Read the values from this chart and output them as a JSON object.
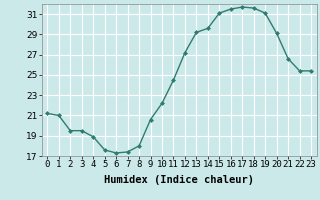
{
  "x": [
    0,
    1,
    2,
    3,
    4,
    5,
    6,
    7,
    8,
    9,
    10,
    11,
    12,
    13,
    14,
    15,
    16,
    17,
    18,
    19,
    20,
    21,
    22,
    23
  ],
  "y": [
    21.2,
    21.0,
    19.5,
    19.5,
    18.9,
    17.6,
    17.3,
    17.4,
    18.0,
    20.6,
    22.2,
    24.5,
    27.2,
    29.2,
    29.6,
    31.1,
    31.5,
    31.7,
    31.6,
    31.1,
    29.1,
    26.6,
    25.4,
    25.4
  ],
  "line_color": "#2e7d6e",
  "marker": "D",
  "marker_size": 2.0,
  "background_color": "#cce9e9",
  "grid_color": "#ffffff",
  "xlabel": "Humidex (Indice chaleur)",
  "ylim": [
    17,
    32
  ],
  "xlim": [
    -0.5,
    23.5
  ],
  "yticks": [
    17,
    19,
    21,
    23,
    25,
    27,
    29,
    31
  ],
  "xlabel_fontsize": 7.5,
  "tick_fontsize": 6.5,
  "line_width": 1.0
}
